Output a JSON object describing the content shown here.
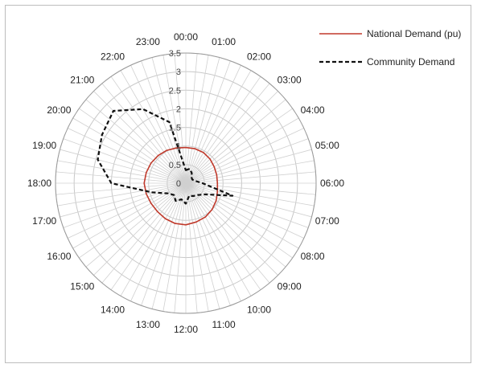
{
  "chart_data": {
    "type": "radar",
    "title": "",
    "categories": [
      "00:00",
      "01:00",
      "02:00",
      "03:00",
      "04:00",
      "05:00",
      "06:00",
      "07:00",
      "08:00",
      "09:00",
      "10:00",
      "11:00",
      "12:00",
      "13:00",
      "14:00",
      "15:00",
      "16:00",
      "17:00",
      "18:00",
      "19:00",
      "20:00",
      "21:00",
      "22:00",
      "23:00"
    ],
    "radial_ticks": [
      "0",
      "0.5",
      "1",
      "1.5",
      "2",
      "2.5",
      "3",
      "3.5"
    ],
    "rlim": [
      0,
      3.5
    ],
    "grid": true,
    "legend_position": "top-right",
    "series": [
      {
        "name": "National Demand (pu)",
        "color": "#c0392b",
        "style": "solid",
        "values": [
          0.96,
          0.96,
          0.95,
          0.92,
          0.88,
          0.86,
          0.85,
          0.88,
          0.94,
          1.0,
          1.05,
          1.08,
          1.12,
          1.12,
          1.1,
          1.08,
          1.08,
          1.1,
          1.12,
          1.1,
          1.08,
          1.05,
          1.02,
          0.98
        ]
      },
      {
        "name": "Community Demand",
        "color": "#111111",
        "style": "dashed",
        "values": [
          0.35,
          0.4,
          0.32,
          0.22,
          0.2,
          0.25,
          0.45,
          1.3,
          0.6,
          0.45,
          0.4,
          0.35,
          0.55,
          0.45,
          0.55,
          0.45,
          0.55,
          0.95,
          2.0,
          2.45,
          2.6,
          2.75,
          2.3,
          1.7
        ]
      }
    ]
  }
}
